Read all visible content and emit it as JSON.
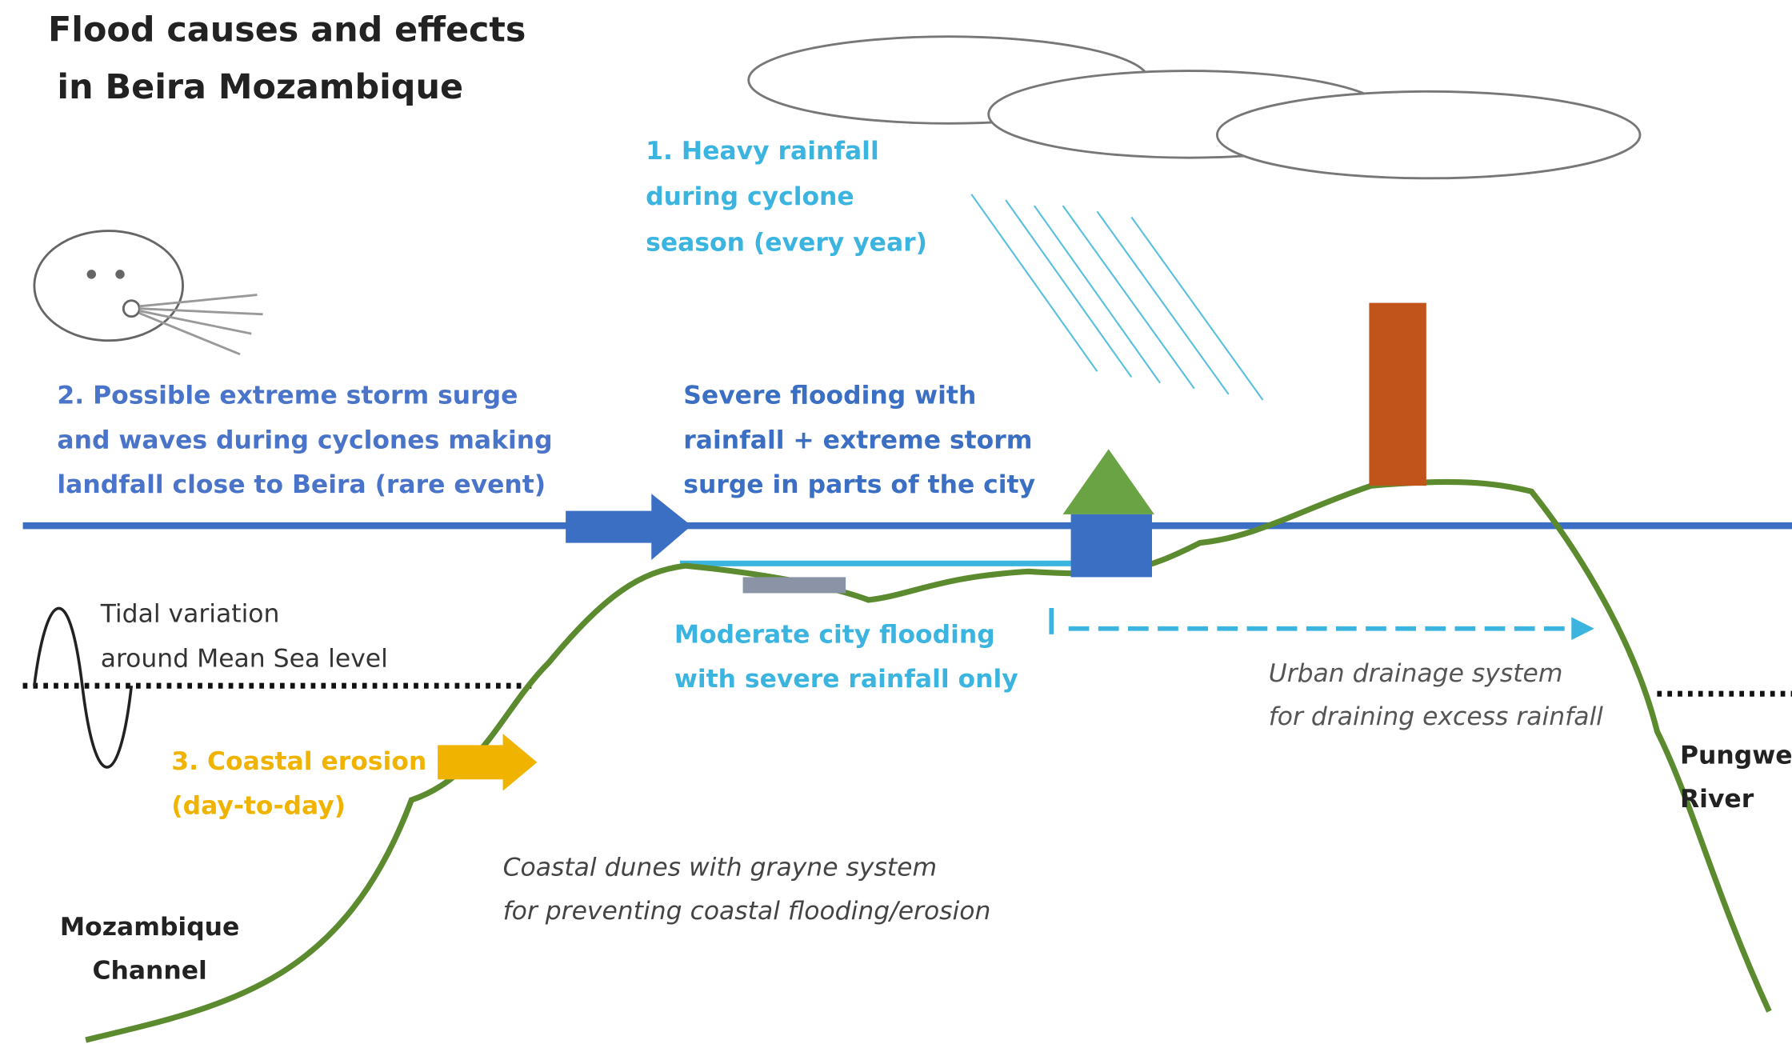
{
  "title": [
    "Flood causes and effects",
    "in Beira Mozambique"
  ],
  "annotations": [
    {
      "lines": [
        "1. Heavy rainfall",
        "during cyclone",
        "season (every year)"
      ]
    },
    {
      "lines": [
        "2. Possible extreme storm surge",
        "and waves during cyclones making",
        "landfall close to Beira (rare event)"
      ]
    },
    {
      "lines": [
        "Severe flooding with",
        "rainfall + extreme storm",
        "surge in parts of the city"
      ]
    },
    {
      "lines": [
        "Tidal variation",
        "around Mean Sea level"
      ]
    },
    {
      "lines": [
        "Moderate city flooding",
        "with severe rainfall only"
      ]
    },
    {
      "lines": [
        "Urban drainage system",
        "for draining excess rainfall"
      ]
    },
    {
      "lines": [
        "3. Coastal erosion",
        "(day-to-day)"
      ]
    },
    {
      "lines": [
        "Pungwe",
        "River"
      ]
    },
    {
      "lines": [
        "Coastal dunes with grayne system",
        "for preventing coastal flooding/erosion"
      ]
    },
    {
      "lines": [
        "Mozambique",
        "Channel"
      ]
    }
  ]
}
